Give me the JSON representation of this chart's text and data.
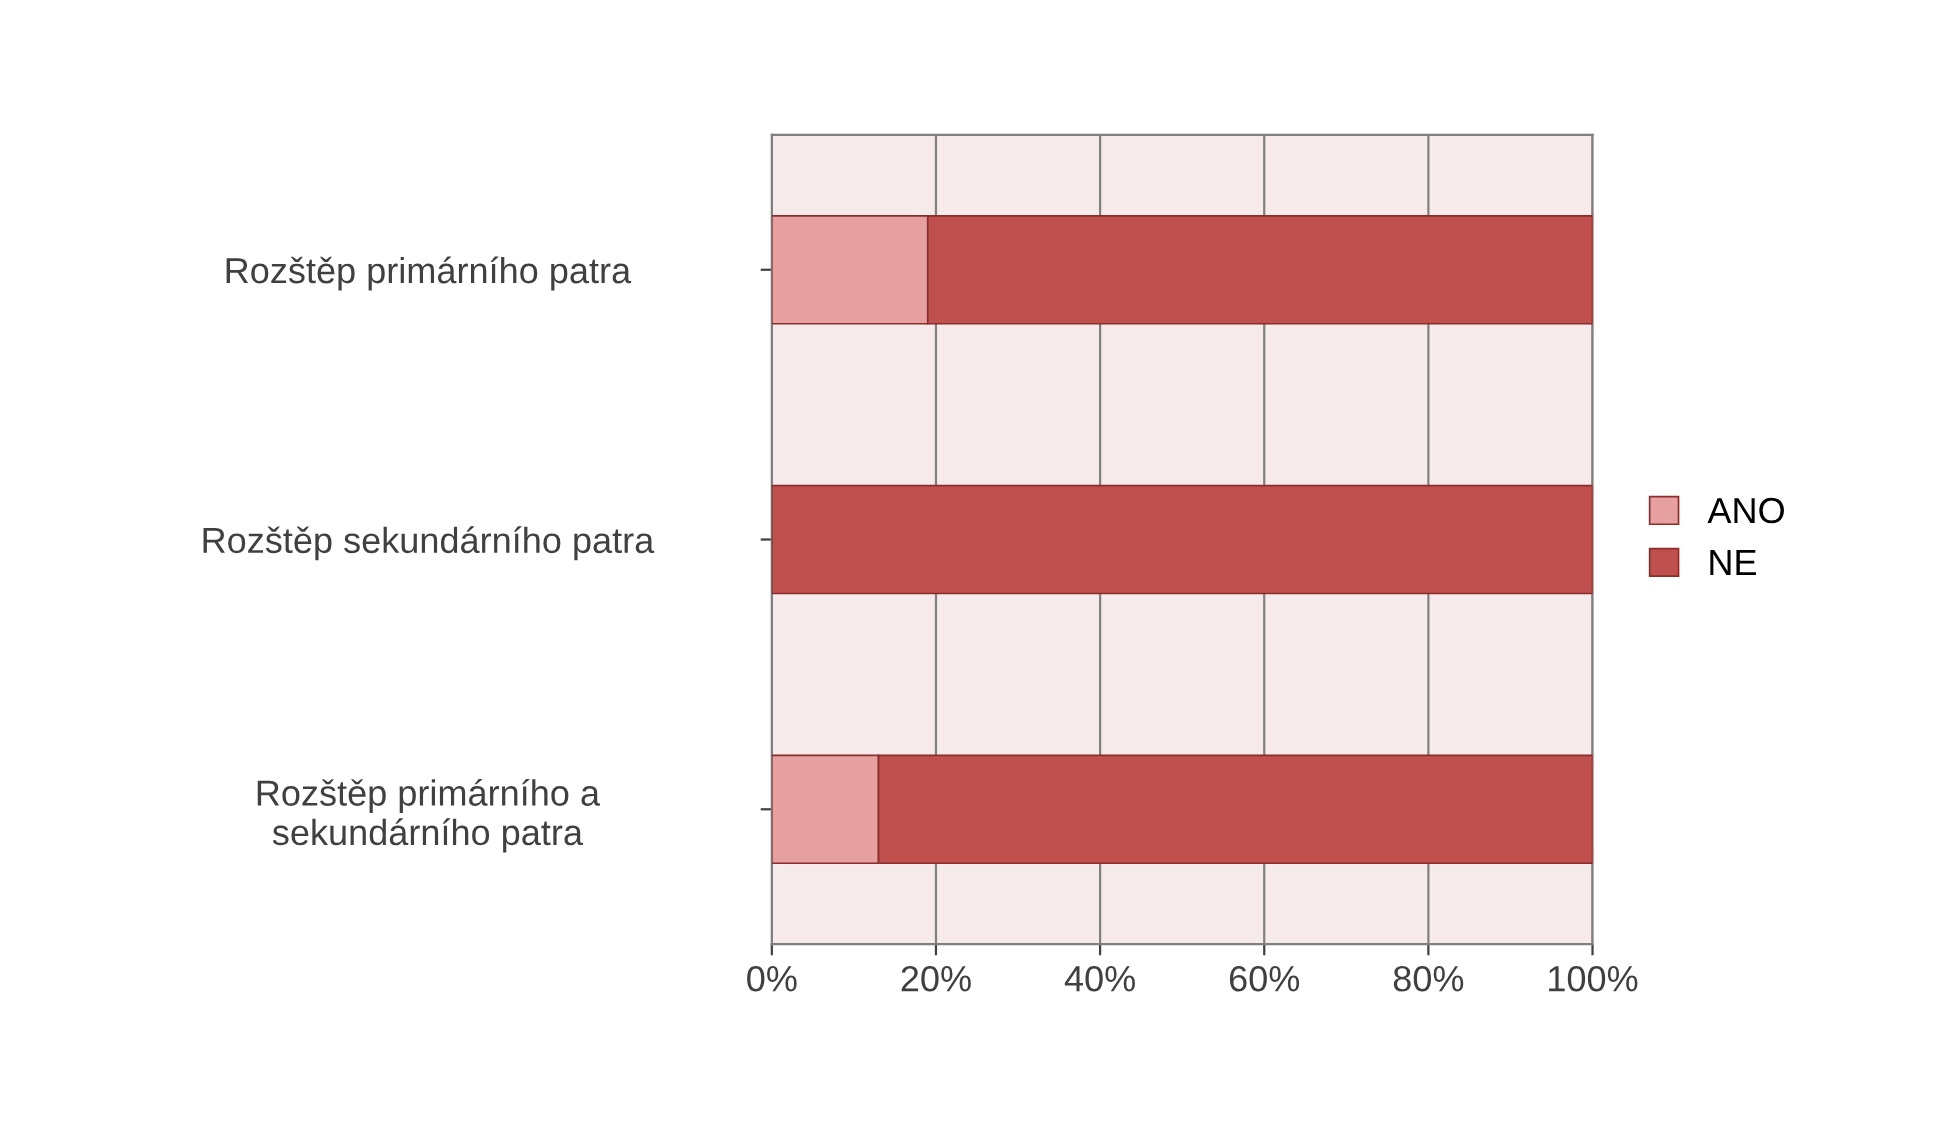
{
  "chart_data": {
    "type": "bar",
    "orientation": "horizontal",
    "stacked": true,
    "categories": [
      "Rozštěp primárního patra",
      "Rozštěp sekundárního patra",
      "Rozštěp primárního a\nsekundárního patra"
    ],
    "series": [
      {
        "name": "ANO",
        "color": "#e6a0a0",
        "values": [
          19,
          0,
          13
        ]
      },
      {
        "name": "NE",
        "color": "#c0504d",
        "values": [
          81,
          100,
          87
        ]
      }
    ],
    "xlim": [
      0,
      100
    ],
    "xticks": [
      {
        "value": 0,
        "label": "0%"
      },
      {
        "value": 20,
        "label": "20%"
      },
      {
        "value": 40,
        "label": "40%"
      },
      {
        "value": 60,
        "label": "60%"
      },
      {
        "value": 80,
        "label": "80%"
      },
      {
        "value": 100,
        "label": "100%"
      }
    ],
    "grid": "x",
    "legend": "right"
  }
}
